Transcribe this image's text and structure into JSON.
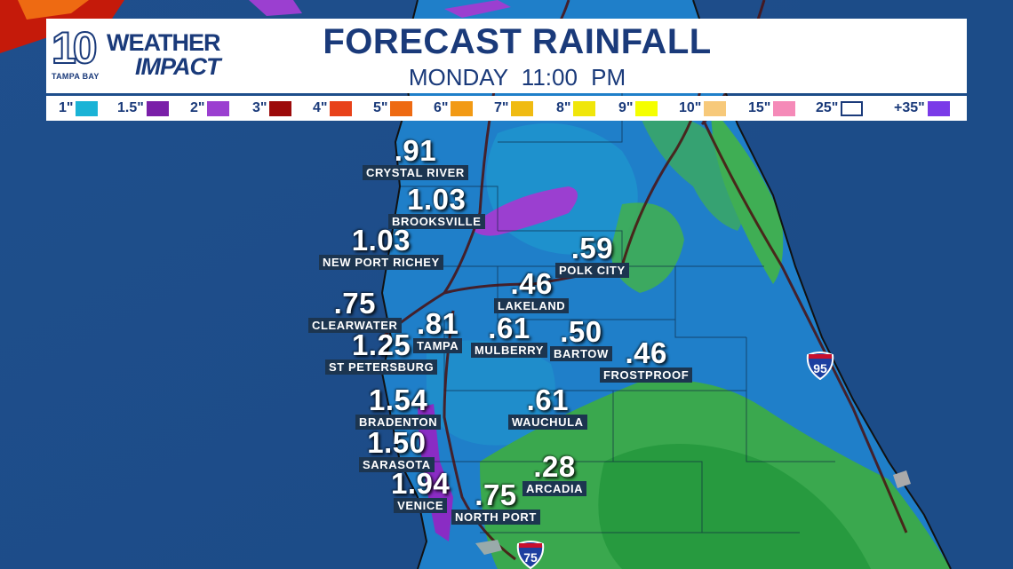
{
  "header": {
    "logo_number": "10",
    "logo_subtext": "TAMPA BAY",
    "logo_word_1": "WEATHER",
    "logo_word_2": "IMPACT",
    "title": "FORECAST RAINFALL",
    "subtitle": "MONDAY  11:00 PM"
  },
  "legend": [
    {
      "label": "1\"",
      "color": "#1ab3d6"
    },
    {
      "label": "1.5\"",
      "color": "#7a1fa8"
    },
    {
      "label": "2\"",
      "color": "#9b3fd0"
    },
    {
      "label": "3\"",
      "color": "#9c0a0a"
    },
    {
      "label": "4\"",
      "color": "#e8421a"
    },
    {
      "label": "5\"",
      "color": "#ee6a12"
    },
    {
      "label": "6\"",
      "color": "#f29a14"
    },
    {
      "label": "7\"",
      "color": "#f0bb12"
    },
    {
      "label": "8\"",
      "color": "#f0e60a"
    },
    {
      "label": "9\"",
      "color": "#f5ff00"
    },
    {
      "label": "10\"",
      "color": "#f7c97a"
    },
    {
      "label": "15\"",
      "color": "#f58ab8"
    },
    {
      "label": "25\"",
      "color": "#ffffff"
    },
    {
      "label": "+35\"",
      "color": "#7a3ae8"
    }
  ],
  "cities": [
    {
      "value": ".91",
      "name": "CRYSTAL RIVER"
    },
    {
      "value": "1.03",
      "name": "BROOKSVILLE"
    },
    {
      "value": "1.03",
      "name": "NEW PORT RICHEY"
    },
    {
      "value": ".59",
      "name": "POLK CITY"
    },
    {
      "value": ".46",
      "name": "LAKELAND"
    },
    {
      "value": ".75",
      "name": "CLEARWATER"
    },
    {
      "value": ".81",
      "name": "TAMPA"
    },
    {
      "value": ".61",
      "name": "MULBERRY"
    },
    {
      "value": ".50",
      "name": "BARTOW"
    },
    {
      "value": "1.25",
      "name": "ST PETERSBURG"
    },
    {
      "value": ".46",
      "name": "FROSTPROOF"
    },
    {
      "value": "1.54",
      "name": "BRADENTON"
    },
    {
      "value": ".61",
      "name": "WAUCHULA"
    },
    {
      "value": "1.50",
      "name": "SARASOTA"
    },
    {
      "value": ".28",
      "name": "ARCADIA"
    },
    {
      "value": "1.94",
      "name": "VENICE"
    },
    {
      "value": ".75",
      "name": "NORTH PORT"
    }
  ],
  "highways": [
    {
      "label": "95",
      "icon": "interstate-shield-icon"
    },
    {
      "label": "75",
      "icon": "interstate-shield-icon"
    }
  ]
}
